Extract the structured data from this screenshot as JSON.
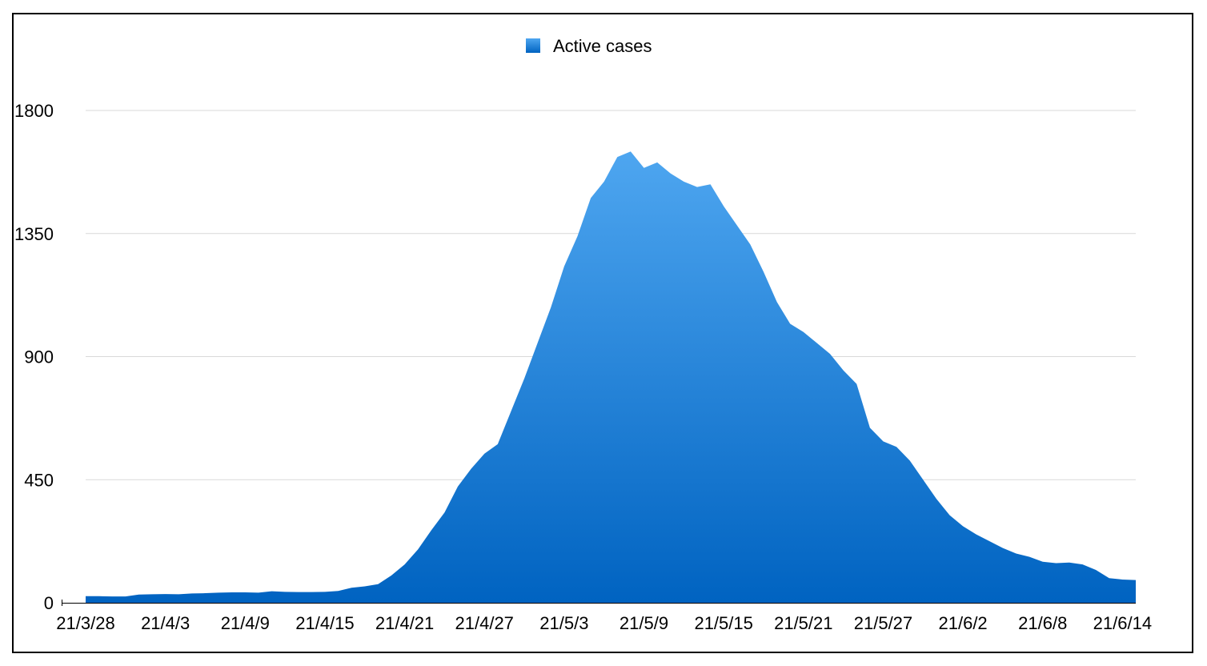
{
  "chart_data": {
    "type": "area",
    "title": "",
    "xlabel": "",
    "ylabel": "",
    "legend": {
      "placement": "top-center",
      "entries": [
        "Active cases"
      ]
    },
    "grid": true,
    "ylim": [
      0,
      1800
    ],
    "y_ticks": [
      "0",
      "450",
      "900",
      "1350",
      "1800"
    ],
    "x_tick_labels": [
      "21/3/28",
      "21/4/3",
      "21/4/9",
      "21/4/15",
      "21/4/21",
      "21/4/27",
      "21/5/3",
      "21/5/9",
      "21/5/15",
      "21/5/21",
      "21/5/27",
      "21/6/2",
      "21/6/8",
      "21/6/14"
    ],
    "x": [
      "21/3/28",
      "21/3/29",
      "21/3/30",
      "21/3/31",
      "21/4/1",
      "21/4/2",
      "21/4/3",
      "21/4/4",
      "21/4/5",
      "21/4/6",
      "21/4/7",
      "21/4/8",
      "21/4/9",
      "21/4/10",
      "21/4/11",
      "21/4/12",
      "21/4/13",
      "21/4/14",
      "21/4/15",
      "21/4/16",
      "21/4/17",
      "21/4/18",
      "21/4/19",
      "21/4/20",
      "21/4/21",
      "21/4/22",
      "21/4/23",
      "21/4/24",
      "21/4/25",
      "21/4/26",
      "21/4/27",
      "21/4/28",
      "21/4/29",
      "21/4/30",
      "21/5/1",
      "21/5/2",
      "21/5/3",
      "21/5/4",
      "21/5/5",
      "21/5/6",
      "21/5/7",
      "21/5/8",
      "21/5/9",
      "21/5/10",
      "21/5/11",
      "21/5/12",
      "21/5/13",
      "21/5/14",
      "21/5/15",
      "21/5/16",
      "21/5/17",
      "21/5/18",
      "21/5/19",
      "21/5/20",
      "21/5/21",
      "21/5/22",
      "21/5/23",
      "21/5/24",
      "21/5/25",
      "21/5/26",
      "21/5/27",
      "21/5/28",
      "21/5/29",
      "21/5/30",
      "21/5/31",
      "21/6/1",
      "21/6/2",
      "21/6/3",
      "21/6/4",
      "21/6/5",
      "21/6/6",
      "21/6/7",
      "21/6/8",
      "21/6/9",
      "21/6/10",
      "21/6/11",
      "21/6/12",
      "21/6/13",
      "21/6/14",
      "21/6/15"
    ],
    "series": [
      {
        "name": "Active cases",
        "values": [
          24,
          24,
          23,
          23,
          30,
          31,
          32,
          31,
          34,
          35,
          37,
          38,
          38,
          37,
          42,
          40,
          39,
          39,
          40,
          43,
          55,
          60,
          68,
          100,
          140,
          195,
          265,
          330,
          425,
          490,
          545,
          580,
          700,
          820,
          950,
          1080,
          1230,
          1340,
          1480,
          1540,
          1630,
          1650,
          1590,
          1610,
          1570,
          1540,
          1520,
          1530,
          1450,
          1380,
          1310,
          1210,
          1100,
          1020,
          990,
          950,
          910,
          850,
          800,
          640,
          590,
          570,
          520,
          450,
          380,
          320,
          280,
          250,
          225,
          200,
          180,
          168,
          150,
          145,
          147,
          140,
          120,
          90,
          85,
          83
        ]
      }
    ],
    "colors": {
      "area_top": "#4ea6f0",
      "area_bottom": "#0063c1",
      "legend_swatch": "#1f7fe0",
      "grid": "#d9d9d9",
      "axis": "#000000",
      "frame": "#000000"
    }
  }
}
